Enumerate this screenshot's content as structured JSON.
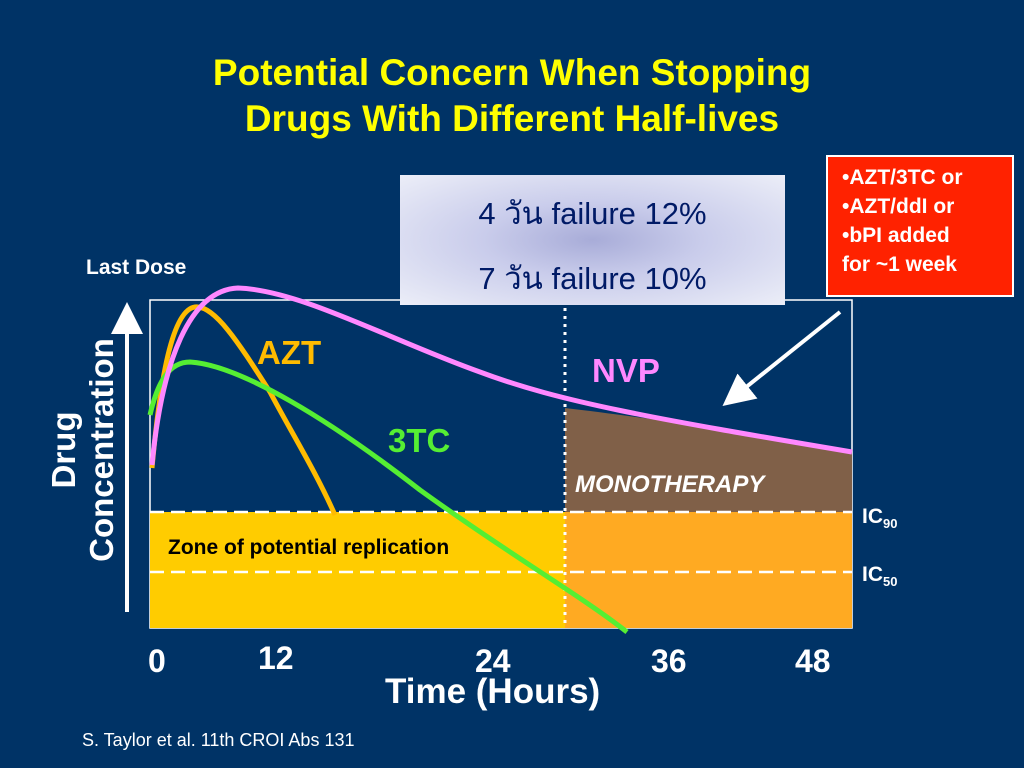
{
  "title": {
    "line1": "Potential Concern When Stopping",
    "line2": "Drugs With Different Half-lives"
  },
  "infobox": {
    "line1": "4 วัน failure 12%",
    "line2": "7 วัน failure 10%"
  },
  "regimen_box": {
    "items": [
      "•AZT/3TC or",
      "•AZT/ddI or",
      "•bPI added",
      "for ~1 week"
    ]
  },
  "labels": {
    "last_dose": "Last Dose",
    "azt": "AZT",
    "nvp": "NVP",
    "tc3": "3TC",
    "monotherapy": "MONOTHERAPY",
    "zone": "Zone of potential replication",
    "ic90": "IC",
    "ic90_sub": "90",
    "ic50": "IC",
    "ic50_sub": "50"
  },
  "axes": {
    "y_label_line1": "Drug",
    "y_label_line2": "Concentration",
    "x_label": "Time (Hours)",
    "x_ticks": [
      "0",
      "12",
      "24",
      "36",
      "48"
    ]
  },
  "source": "S. Taylor et al. 11th CROI  Abs 131",
  "colors": {
    "background": "#003366",
    "title": "#ffff00",
    "azt": "#ffbb00",
    "nvp": "#ff88ff",
    "tc3": "#55ee33",
    "zone": "#ffcc00",
    "zone_right": "#ffaa22",
    "monotherapy": "#806048",
    "regimen_box": "#ff2200"
  }
}
